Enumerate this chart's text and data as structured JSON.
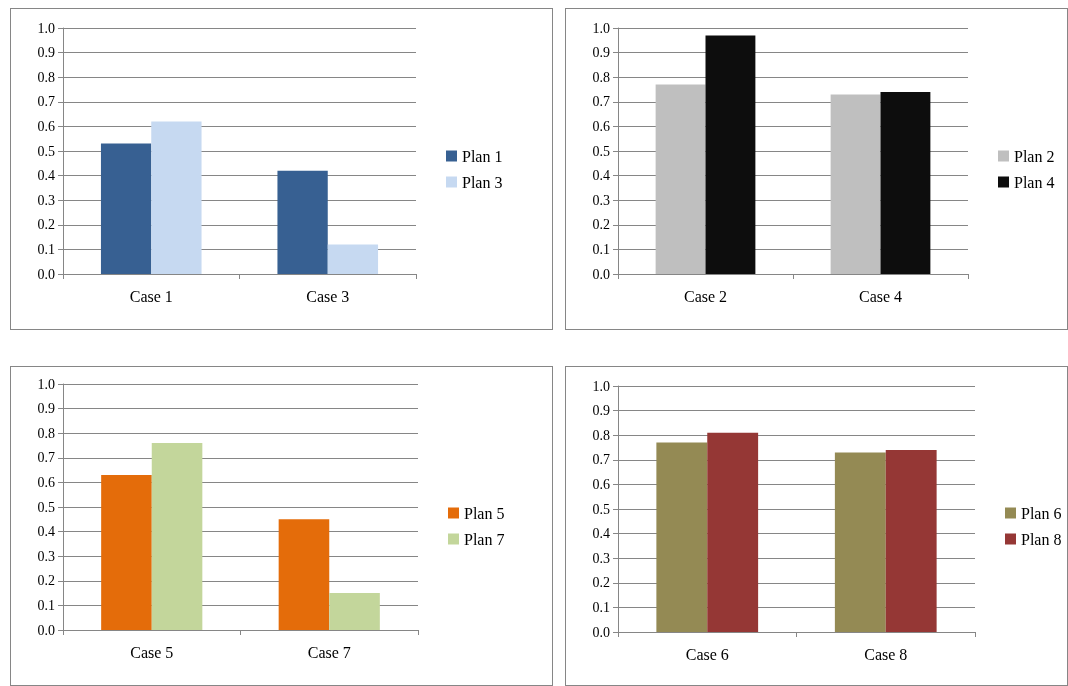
{
  "chart_data": [
    {
      "type": "bar",
      "categories": [
        "Case 1",
        "Case 3"
      ],
      "series": [
        {
          "name": "Plan 1",
          "color": "#376092",
          "values": [
            0.53,
            0.42
          ]
        },
        {
          "name": "Plan 3",
          "color": "#c6d9f1",
          "values": [
            0.62,
            0.12
          ]
        }
      ],
      "ylim": [
        0,
        1
      ],
      "yticks": [
        {
          "value": 0,
          "label": "0.0"
        },
        {
          "value": 0.1,
          "label": "0.1"
        },
        {
          "value": 0.2,
          "label": "0.2"
        },
        {
          "value": 0.3,
          "label": "0.3"
        },
        {
          "value": 0.4,
          "label": "0.4"
        },
        {
          "value": 0.5,
          "label": "0.5"
        },
        {
          "value": 0.6,
          "label": "0.6"
        },
        {
          "value": 0.7,
          "label": "0.7"
        },
        {
          "value": 0.8,
          "label": "0.8"
        },
        {
          "value": 0.9,
          "label": "0.9"
        },
        {
          "value": 1,
          "label": "1.0"
        }
      ],
      "grid": "y",
      "legend": "right"
    },
    {
      "type": "bar",
      "categories": [
        "Case 2",
        "Case 4"
      ],
      "series": [
        {
          "name": "Plan 2",
          "color": "#bfbfbf",
          "values": [
            0.77,
            0.73
          ]
        },
        {
          "name": "Plan 4",
          "color": "#0d0d0d",
          "values": [
            0.97,
            0.74
          ]
        }
      ],
      "ylim": [
        0,
        1
      ],
      "yticks": [
        {
          "value": 0,
          "label": "0.0"
        },
        {
          "value": 0.1,
          "label": "0.1"
        },
        {
          "value": 0.2,
          "label": "0.2"
        },
        {
          "value": 0.3,
          "label": "0.3"
        },
        {
          "value": 0.4,
          "label": "0.4"
        },
        {
          "value": 0.5,
          "label": "0.5"
        },
        {
          "value": 0.6,
          "label": "0.6"
        },
        {
          "value": 0.7,
          "label": "0.7"
        },
        {
          "value": 0.8,
          "label": "0.8"
        },
        {
          "value": 0.9,
          "label": "0.9"
        },
        {
          "value": 1,
          "label": "1.0"
        }
      ],
      "grid": "y",
      "legend": "right"
    },
    {
      "type": "bar",
      "categories": [
        "Case 5",
        "Case 7"
      ],
      "series": [
        {
          "name": "Plan 5",
          "color": "#e46c0a",
          "values": [
            0.63,
            0.45
          ]
        },
        {
          "name": "Plan 7",
          "color": "#c3d69b",
          "values": [
            0.76,
            0.15
          ]
        }
      ],
      "ylim": [
        0,
        1
      ],
      "yticks": [
        {
          "value": 0,
          "label": "0.0"
        },
        {
          "value": 0.1,
          "label": "0.1"
        },
        {
          "value": 0.2,
          "label": "0.2"
        },
        {
          "value": 0.3,
          "label": "0.3"
        },
        {
          "value": 0.4,
          "label": "0.4"
        },
        {
          "value": 0.5,
          "label": "0.5"
        },
        {
          "value": 0.6,
          "label": "0.6"
        },
        {
          "value": 0.7,
          "label": "0.7"
        },
        {
          "value": 0.8,
          "label": "0.8"
        },
        {
          "value": 0.9,
          "label": "0.9"
        },
        {
          "value": 1,
          "label": "1.0"
        }
      ],
      "grid": "y",
      "legend": "right"
    },
    {
      "type": "bar",
      "categories": [
        "Case 6",
        "Case 8"
      ],
      "series": [
        {
          "name": "Plan 6",
          "color": "#948a54",
          "values": [
            0.77,
            0.73
          ]
        },
        {
          "name": "Plan 8",
          "color": "#953735",
          "values": [
            0.81,
            0.74
          ]
        }
      ],
      "ylim": [
        0,
        1
      ],
      "yticks": [
        {
          "value": 0,
          "label": "0.0"
        },
        {
          "value": 0.1,
          "label": "0.1"
        },
        {
          "value": 0.2,
          "label": "0.2"
        },
        {
          "value": 0.3,
          "label": "0.3"
        },
        {
          "value": 0.4,
          "label": "0.4"
        },
        {
          "value": 0.5,
          "label": "0.5"
        },
        {
          "value": 0.6,
          "label": "0.6"
        },
        {
          "value": 0.7,
          "label": "0.7"
        },
        {
          "value": 0.8,
          "label": "0.8"
        },
        {
          "value": 0.9,
          "label": "0.9"
        },
        {
          "value": 1,
          "label": "1.0"
        }
      ],
      "grid": "y",
      "legend": "right"
    }
  ]
}
